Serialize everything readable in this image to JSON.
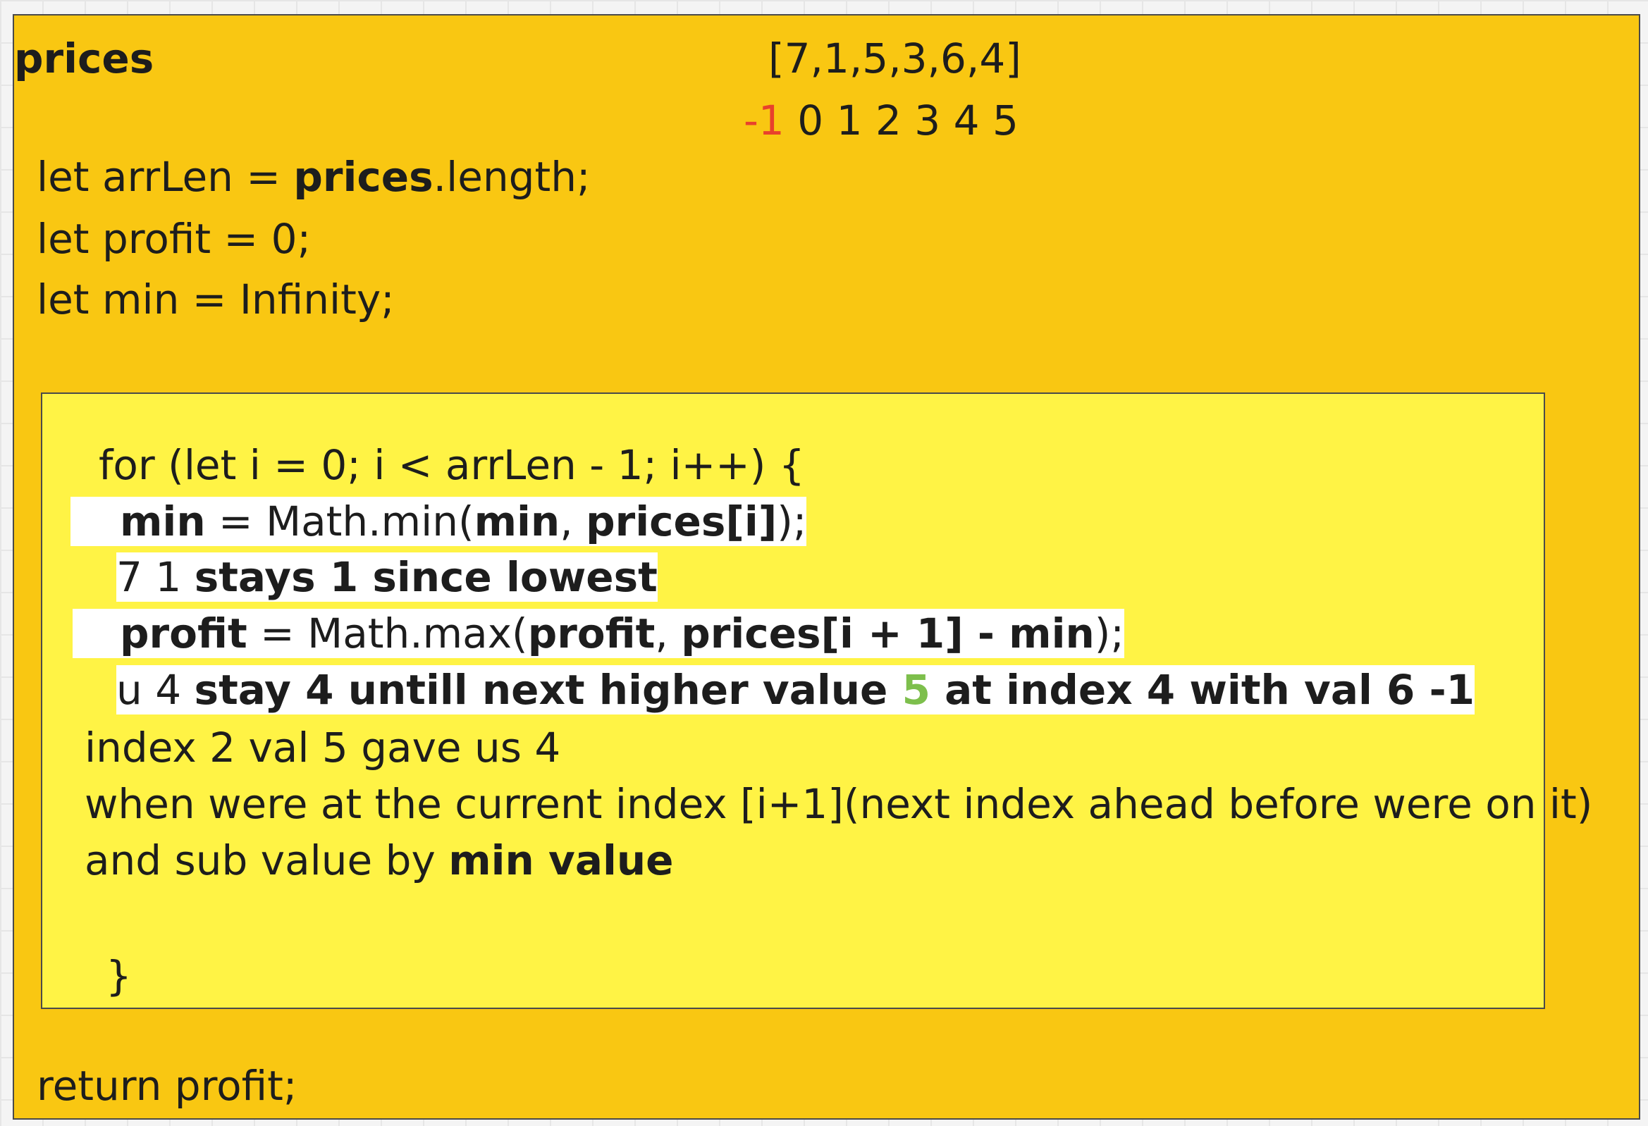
{
  "board": {
    "title": "prices",
    "prices_array": "[7,1,5,3,6,4]",
    "index_neg": "-1",
    "index_rest": " 0 1 2 3 4 5",
    "decl1_a": "let arrLen = ",
    "decl1_b": "prices",
    "decl1_c": ".length;",
    "decl2": "let profit = 0;",
    "decl3": "let min = Infinity;",
    "return": "return profit;"
  },
  "loop": {
    "head": "for (let i = 0; i < arrLen - 1; i++) {",
    "min_a": "min",
    "min_b": " = Math.min(",
    "min_c": "min",
    "min_d": ", ",
    "min_e": "prices[i]",
    "min_f": ");",
    "note1_a": "7 1 ",
    "note1_b": "stays 1 since lowest",
    "profit_a": "profit",
    "profit_b": " = Math.max(",
    "profit_c": "profit",
    "profit_d": ", ",
    "profit_e": "prices[i + 1] - min",
    "profit_f": ");",
    "note2_a": "u 4 ",
    "note2_b": "stay 4 untill next higher value ",
    "note2_c": "5",
    "note2_d": " at index 4 with val 6 -1",
    "comment1": "index 2 val 5 gave us 4",
    "comment2": "when were at the current index [i+1](next index ahead before were on it)",
    "comment3_a": "and sub value by ",
    "comment3_b": "min value",
    "close": "}"
  },
  "colors": {
    "canvas": "#f4f4f4",
    "outer_note": "#f9c712",
    "inner_note": "#fff345",
    "highlight": "#ffffff",
    "negative_index": "#e8412c",
    "green_value": "#7dbf4c"
  }
}
